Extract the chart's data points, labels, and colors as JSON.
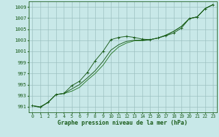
{
  "xlabel": "Graphe pression niveau de la mer (hPa)",
  "hours": [
    0,
    1,
    2,
    3,
    4,
    5,
    6,
    7,
    8,
    9,
    10,
    11,
    12,
    13,
    14,
    15,
    16,
    17,
    18,
    19,
    20,
    21,
    22,
    23
  ],
  "line1": [
    991.2,
    991.0,
    991.8,
    993.2,
    993.4,
    994.8,
    995.6,
    997.2,
    999.3,
    1001.0,
    1003.1,
    1003.5,
    1003.7,
    1003.5,
    1003.2,
    1003.1,
    1003.4,
    1003.8,
    1004.3,
    1005.2,
    1006.9,
    1007.2,
    1008.7,
    1009.4
  ],
  "line2": [
    991.2,
    990.9,
    991.8,
    993.2,
    993.4,
    994.2,
    995.0,
    996.2,
    997.5,
    999.2,
    1001.2,
    1002.2,
    1002.8,
    1003.0,
    1003.0,
    1003.1,
    1003.4,
    1003.9,
    1004.6,
    1005.5,
    1006.9,
    1007.2,
    1008.7,
    1009.4
  ],
  "line3": [
    991.2,
    990.9,
    991.8,
    993.2,
    993.4,
    993.8,
    994.5,
    995.8,
    997.0,
    998.5,
    1000.5,
    1001.8,
    1002.5,
    1002.9,
    1002.9,
    1003.1,
    1003.4,
    1003.9,
    1004.6,
    1005.5,
    1006.9,
    1007.2,
    1008.7,
    1009.4
  ],
  "line_color_dark": "#1a5c1a",
  "line_color_mid": "#2a7a2a",
  "bg_color": "#c8e8e8",
  "grid_color": "#9bbfbf",
  "text_color": "#1a5c1a",
  "ylim": [
    990.0,
    1010.0
  ],
  "yticks": [
    991,
    993,
    995,
    997,
    999,
    1001,
    1003,
    1005,
    1007,
    1009
  ],
  "xticks": [
    0,
    1,
    2,
    3,
    4,
    5,
    6,
    7,
    8,
    9,
    10,
    11,
    12,
    13,
    14,
    15,
    16,
    17,
    18,
    19,
    20,
    21,
    22,
    23
  ],
  "xlabel_fontsize": 6.0,
  "ylabel_fontsize": 5.2,
  "xlabel_fontsize_x": 4.8
}
